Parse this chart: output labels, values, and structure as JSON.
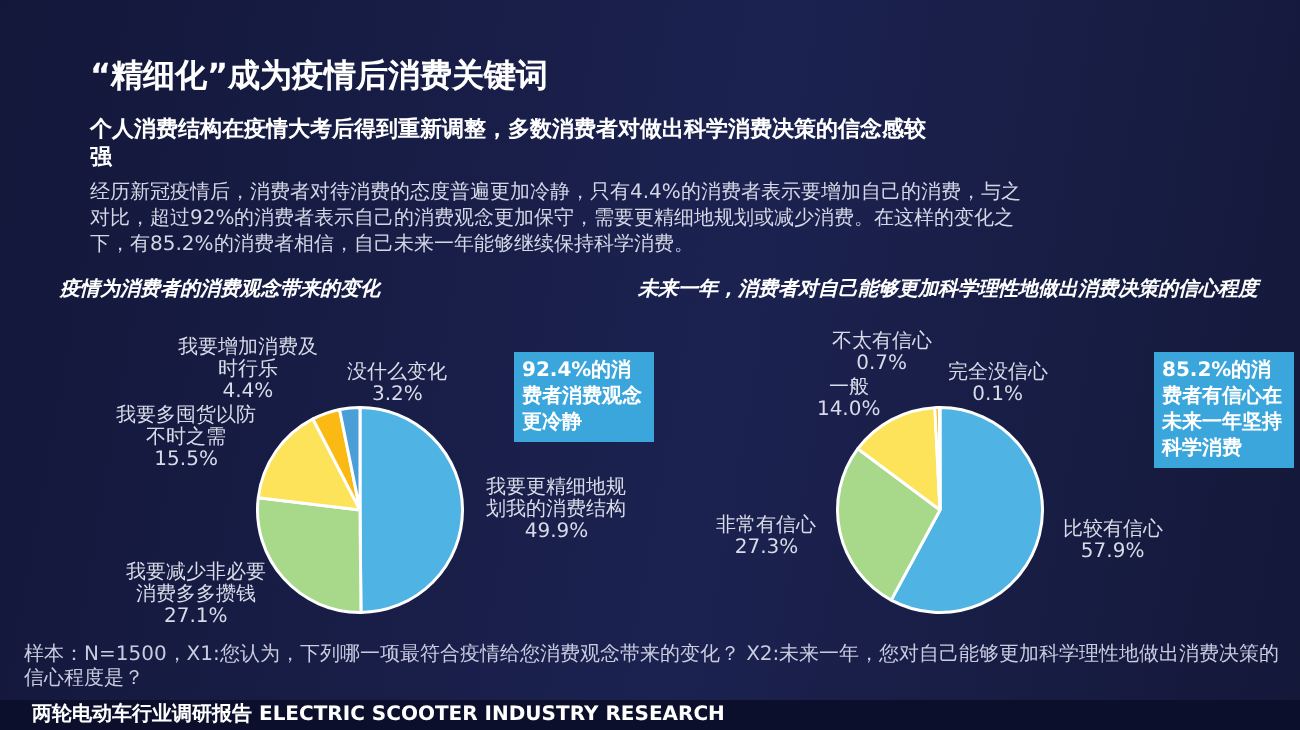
{
  "chart_data": [
    {
      "type": "pie",
      "title": "疫情为消费者的消费观念带来的变化",
      "categories": [
        "我要更精细地规划我的消费结构",
        "我要减少非必要消费多多攒钱",
        "我要多囤货以防不时之需",
        "我要增加消费及时行乐",
        "没什么变化"
      ],
      "values": [
        49.9,
        27.1,
        15.5,
        4.4,
        3.2
      ],
      "value_labels": [
        "49.9%",
        "27.1%",
        "15.5%",
        "4.4%",
        "3.2%"
      ],
      "colors": [
        "#4fb3e3",
        "#a8d98a",
        "#fce35a",
        "#fbb913",
        "#4a9fd8"
      ],
      "legend": false,
      "annotations": [
        "“精细化”成为疫情后消费关键词",
        "个人消费结构在疫情大考后得到重新调整，多数消费者对做出科学消费决策的信念感较强",
        "经历新冠疫情后，消费者对待消费的态度普遍更加冷静，只有4.4%的消费者表示要增加自己的消费，与之对比，超过92%的消费者表示自己的消费观念更加保守，需要更精细地规划或减少消费。在这样的变化之下，有85.2%的消费者相信，自己未来一年能够继续保持科学消费。",
        "92.4%的消费者消费观念更冷静",
        "样本：N=1500，X1:您认为，下列哪一项最符合疫情给您消费观念带来的变化？ X2:未来一年，您对自己能够更加科学理性地做出消费决策的信心程度是？",
        "两轮电动车行业调研报告 ELECTRIC SCOOTER INDUSTRY RESEARCH"
      ]
    },
    {
      "type": "pie",
      "title": "未来一年，消费者对自己能够更加科学理性地做出消费决策的信心程度",
      "categories": [
        "比较有信心",
        "非常有信心",
        "一般",
        "不太有信心",
        "完全没信心"
      ],
      "values": [
        57.9,
        27.3,
        14.0,
        0.7,
        0.1
      ],
      "value_labels": [
        "57.9%",
        "27.3%",
        "14.0%",
        "0.7%",
        "0.1%"
      ],
      "colors": [
        "#4fb3e3",
        "#a8d98a",
        "#fce35a",
        "#f2b21a",
        "#f4f4f4"
      ],
      "legend": false,
      "annotations": [
        "85.2%的消费者有信心在未来一年坚持科学消费"
      ]
    }
  ]
}
